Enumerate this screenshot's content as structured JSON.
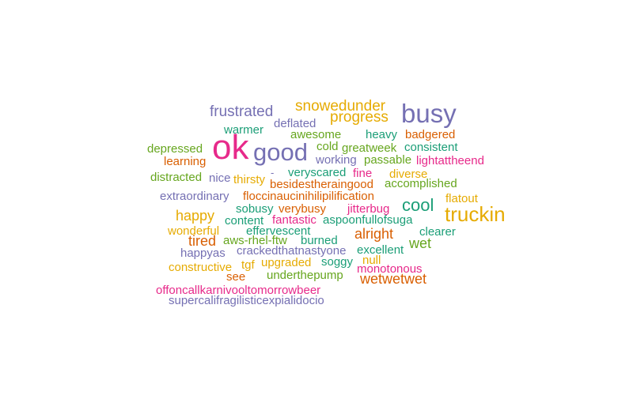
{
  "palette": {
    "teal": "#1b9e77",
    "orange": "#d95f02",
    "purple": "#7570b3",
    "pink": "#e7298a",
    "green": "#66a61e",
    "gold": "#e6ab02"
  },
  "words": [
    {
      "text": "frustrated",
      "color": "purple"
    },
    {
      "text": "snowedunder",
      "color": "gold"
    },
    {
      "text": "busy",
      "color": "purple"
    },
    {
      "text": "progress",
      "color": "gold"
    },
    {
      "text": "deflated",
      "color": "purple"
    },
    {
      "text": "warmer",
      "color": "teal"
    },
    {
      "text": "awesome",
      "color": "green"
    },
    {
      "text": "heavy",
      "color": "teal"
    },
    {
      "text": "badgered",
      "color": "orange"
    },
    {
      "text": "ok",
      "color": "pink"
    },
    {
      "text": "good",
      "color": "purple"
    },
    {
      "text": "depressed",
      "color": "green"
    },
    {
      "text": "cold",
      "color": "green"
    },
    {
      "text": "greatweek",
      "color": "green"
    },
    {
      "text": "consistent",
      "color": "teal"
    },
    {
      "text": "learning",
      "color": "orange"
    },
    {
      "text": "working",
      "color": "purple"
    },
    {
      "text": "passable",
      "color": "green"
    },
    {
      "text": "lightattheend",
      "color": "pink"
    },
    {
      "text": "distracted",
      "color": "green"
    },
    {
      "text": "nice",
      "color": "purple"
    },
    {
      "text": "thirsty",
      "color": "gold"
    },
    {
      "text": "-",
      "color": "purple"
    },
    {
      "text": "veryscared",
      "color": "teal"
    },
    {
      "text": "fine",
      "color": "pink"
    },
    {
      "text": "diverse",
      "color": "gold"
    },
    {
      "text": "besidestheraingood",
      "color": "orange"
    },
    {
      "text": "accomplished",
      "color": "green"
    },
    {
      "text": "extraordinary",
      "color": "purple"
    },
    {
      "text": "floccinaucinihilipilification",
      "color": "orange"
    },
    {
      "text": "flatout",
      "color": "gold"
    },
    {
      "text": "sobusy",
      "color": "teal"
    },
    {
      "text": "verybusy",
      "color": "orange"
    },
    {
      "text": "jitterbug",
      "color": "pink"
    },
    {
      "text": "cool",
      "color": "teal"
    },
    {
      "text": "happy",
      "color": "gold"
    },
    {
      "text": "truckin",
      "color": "gold"
    },
    {
      "text": "content",
      "color": "teal"
    },
    {
      "text": "fantastic",
      "color": "pink"
    },
    {
      "text": "aspoonfullofsuga",
      "color": "teal"
    },
    {
      "text": "wonderful",
      "color": "gold"
    },
    {
      "text": "effervescent",
      "color": "teal"
    },
    {
      "text": "alright",
      "color": "orange"
    },
    {
      "text": "clearer",
      "color": "teal"
    },
    {
      "text": "tired",
      "color": "orange"
    },
    {
      "text": "aws-rhel-ftw",
      "color": "green"
    },
    {
      "text": "burned",
      "color": "teal"
    },
    {
      "text": "wet",
      "color": "green"
    },
    {
      "text": "happyas",
      "color": "purple"
    },
    {
      "text": "crackedthatnastyone",
      "color": "purple"
    },
    {
      "text": "excellent",
      "color": "teal"
    },
    {
      "text": "constructive",
      "color": "gold"
    },
    {
      "text": "tgf",
      "color": "gold"
    },
    {
      "text": "upgraded",
      "color": "gold"
    },
    {
      "text": "soggy",
      "color": "teal"
    },
    {
      "text": "null",
      "color": "gold"
    },
    {
      "text": "monotonous",
      "color": "pink"
    },
    {
      "text": "see",
      "color": "orange"
    },
    {
      "text": "underthepump",
      "color": "green"
    },
    {
      "text": "wetwetwet",
      "color": "orange"
    },
    {
      "text": "offoncallkarnivooltomorrowbeer",
      "color": "pink"
    },
    {
      "text": "supercalifragilisticexpialidocio",
      "color": "purple"
    }
  ]
}
